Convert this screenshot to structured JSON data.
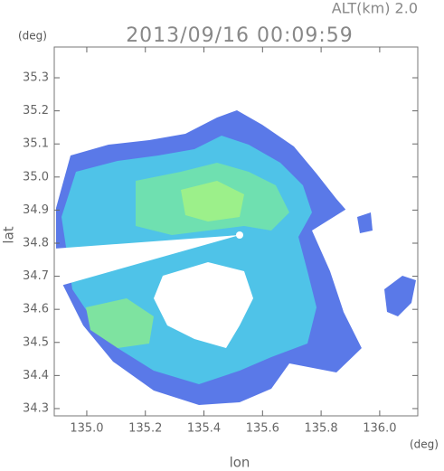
{
  "chart_data": {
    "type": "image",
    "title": "2013/09/16 00:09:59",
    "annotation": "ALT(km) 2.0",
    "x_label": "lon",
    "y_label": "lat",
    "x_unit": "(deg)",
    "y_unit": "(deg)",
    "xlim": [
      134.889,
      136.13
    ],
    "ylim": [
      34.278,
      35.393
    ],
    "xticks": [
      {
        "value": 135.0,
        "label": "135.0"
      },
      135.2,
      135.4,
      135.6,
      135.8,
      {
        "value": 136.0,
        "label": "136.0"
      }
    ],
    "yticks": [
      34.3,
      34.4,
      34.5,
      34.6,
      34.7,
      34.8,
      34.9,
      {
        "value": 35.0,
        "label": "35.0"
      },
      35.1,
      35.2,
      35.3
    ]
  }
}
